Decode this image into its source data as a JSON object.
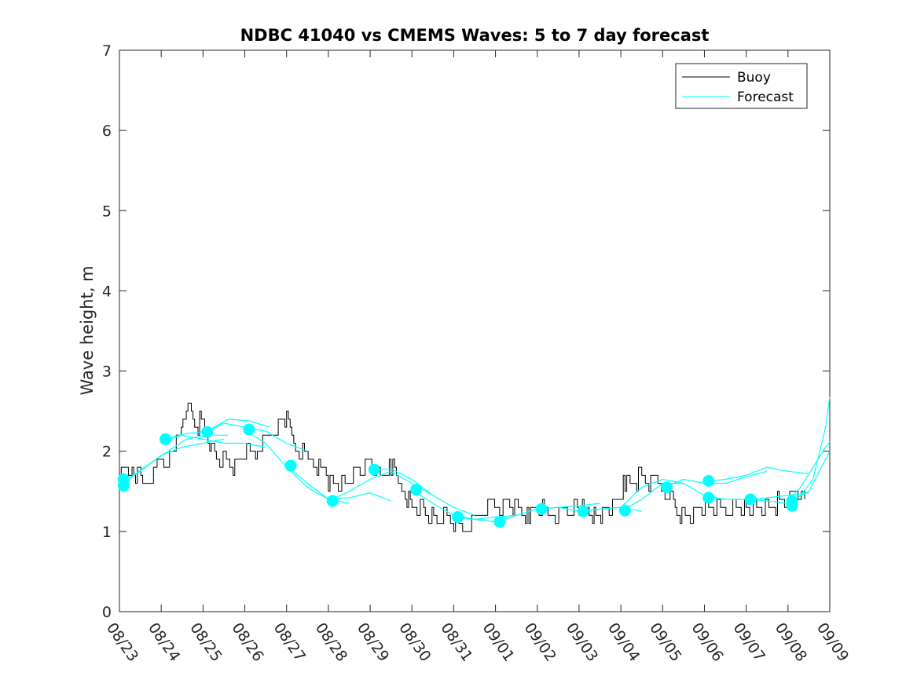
{
  "chart_data": {
    "type": "line",
    "title": "NDBC 41040 vs CMEMS Waves: 5 to 7 day forecast",
    "xlabel": "",
    "ylabel": "Wave height, m",
    "xlim": [
      "08/23",
      "09/09"
    ],
    "ylim": [
      0,
      7
    ],
    "yticks": [
      0,
      1,
      2,
      3,
      4,
      5,
      6,
      7
    ],
    "xtick_labels": [
      "08/23",
      "08/24",
      "08/25",
      "08/26",
      "08/27",
      "08/28",
      "08/29",
      "08/30",
      "08/31",
      "09/01",
      "09/02",
      "09/03",
      "09/04",
      "09/05",
      "09/06",
      "09/07",
      "09/08",
      "09/09"
    ],
    "grid": false,
    "legend": {
      "placement": "top-right",
      "entries": [
        "Buoy",
        "Forecast"
      ]
    },
    "colors": {
      "buoy": "#000000",
      "forecast": "#00FFFF",
      "axis": "#262626"
    },
    "series": [
      {
        "name": "Buoy",
        "x": [
          0.0,
          0.3,
          0.6,
          0.9,
          1.1,
          1.2,
          1.4,
          1.6,
          1.8,
          2.0,
          2.2,
          2.4,
          2.6,
          2.8,
          3.0,
          3.3,
          3.6,
          4.0,
          4.3,
          4.6,
          4.9,
          5.0,
          5.2,
          5.4,
          5.6,
          5.8,
          6.0,
          6.2,
          6.5,
          6.8,
          7.0,
          7.2,
          7.4,
          7.6,
          7.8,
          8.0,
          8.3,
          8.6,
          8.9,
          9.1,
          9.3,
          9.5,
          9.8,
          10.0,
          10.3,
          10.6,
          11.0,
          11.4,
          11.8,
          12.1,
          12.3,
          12.5,
          12.8,
          13.1,
          13.3,
          13.5,
          13.7,
          13.9,
          14.1,
          14.3,
          14.6,
          15.0,
          15.5,
          16.0,
          16.2,
          16.4
        ],
        "values": [
          1.7,
          1.8,
          1.6,
          1.8,
          1.9,
          2.0,
          2.1,
          2.6,
          2.3,
          2.4,
          2.0,
          1.9,
          1.9,
          1.8,
          2.0,
          2.0,
          2.2,
          2.4,
          2.0,
          1.9,
          1.7,
          1.6,
          1.6,
          1.6,
          1.7,
          1.8,
          1.9,
          1.7,
          1.8,
          1.5,
          1.3,
          1.3,
          1.2,
          1.1,
          1.2,
          1.1,
          1.05,
          1.2,
          1.3,
          1.3,
          1.4,
          1.3,
          1.2,
          1.3,
          1.2,
          1.2,
          1.3,
          1.2,
          1.3,
          1.6,
          1.6,
          1.7,
          1.6,
          1.5,
          1.3,
          1.2,
          1.2,
          1.3,
          1.3,
          1.3,
          1.3,
          1.3,
          1.3,
          1.4,
          1.5,
          1.4
        ]
      },
      {
        "name": "Forecast",
        "runs": [
          {
            "x": [
              0.0,
              0.5,
              1.0,
              1.5,
              2.0,
              2.5
            ],
            "values": [
              1.58,
              1.75,
              1.95,
              2.05,
              2.1,
              2.15
            ]
          },
          {
            "x": [
              0.1,
              0.6,
              1.1,
              1.6,
              2.1,
              2.6
            ],
            "values": [
              1.62,
              1.8,
              1.98,
              2.15,
              2.2,
              2.2
            ]
          },
          {
            "x": [
              1.0,
              1.5,
              2.0,
              2.5,
              3.0,
              3.5
            ],
            "values": [
              2.12,
              2.2,
              2.15,
              2.1,
              2.1,
              2.05
            ]
          },
          {
            "x": [
              1.1,
              1.6,
              2.1,
              2.6,
              3.1,
              3.6
            ],
            "values": [
              2.16,
              2.22,
              2.25,
              2.4,
              2.38,
              2.3
            ]
          },
          {
            "x": [
              2.0,
              2.5,
              3.0,
              3.5,
              4.0,
              4.5
            ],
            "values": [
              2.22,
              2.35,
              2.3,
              2.25,
              2.1,
              2.0
            ]
          },
          {
            "x": [
              3.0,
              3.5,
              4.0,
              4.5,
              5.0,
              5.5
            ],
            "values": [
              2.26,
              2.1,
              1.8,
              1.55,
              1.4,
              1.35
            ]
          },
          {
            "x": [
              4.0,
              4.5,
              5.0,
              5.5,
              6.0,
              6.5
            ],
            "values": [
              1.82,
              1.6,
              1.4,
              1.42,
              1.48,
              1.38
            ]
          },
          {
            "x": [
              5.0,
              5.5,
              6.0,
              6.5,
              7.0,
              7.5
            ],
            "values": [
              1.38,
              1.5,
              1.65,
              1.75,
              1.6,
              1.45
            ]
          },
          {
            "x": [
              6.0,
              6.5,
              7.0,
              7.5,
              8.0,
              8.5
            ],
            "values": [
              1.76,
              1.78,
              1.65,
              1.45,
              1.3,
              1.2
            ]
          },
          {
            "x": [
              7.0,
              7.5,
              8.0,
              8.5,
              9.0,
              9.5
            ],
            "values": [
              1.52,
              1.35,
              1.2,
              1.15,
              1.18,
              1.2
            ]
          },
          {
            "x": [
              8.0,
              8.5,
              9.0,
              9.5,
              10.0,
              10.5
            ],
            "values": [
              1.18,
              1.15,
              1.12,
              1.2,
              1.28,
              1.3
            ]
          },
          {
            "x": [
              9.0,
              9.5,
              10.0,
              10.5,
              11.0,
              11.5
            ],
            "values": [
              1.12,
              1.2,
              1.28,
              1.3,
              1.32,
              1.35
            ]
          },
          {
            "x": [
              10.0,
              10.5,
              11.0,
              11.5,
              12.0,
              12.5
            ],
            "values": [
              1.28,
              1.3,
              1.25,
              1.28,
              1.3,
              1.25
            ]
          },
          {
            "x": [
              11.0,
              11.5,
              12.0,
              12.5,
              13.0,
              13.5
            ],
            "values": [
              1.25,
              1.28,
              1.3,
              1.55,
              1.65,
              1.6
            ]
          },
          {
            "x": [
              12.0,
              12.5,
              13.0,
              13.5,
              14.0,
              14.5
            ],
            "values": [
              1.25,
              1.4,
              1.6,
              1.6,
              1.45,
              1.4
            ]
          },
          {
            "x": [
              13.0,
              13.5,
              14.0,
              14.5,
              15.0,
              15.5
            ],
            "values": [
              1.55,
              1.65,
              1.6,
              1.6,
              1.68,
              1.75
            ]
          },
          {
            "x": [
              14.0,
              14.5,
              15.0,
              15.5,
              16.0,
              16.5
            ],
            "values": [
              1.62,
              1.65,
              1.7,
              1.8,
              1.75,
              1.72
            ]
          },
          {
            "x": [
              14.0,
              14.5,
              15.0,
              15.5,
              16.0,
              16.5
            ],
            "values": [
              1.42,
              1.4,
              1.4,
              1.42,
              1.45,
              1.48
            ]
          },
          {
            "x": [
              15.0,
              15.5,
              16.0,
              16.5,
              17.0
            ],
            "values": [
              1.4,
              1.38,
              1.35,
              1.5,
              2.0
            ]
          },
          {
            "x": [
              16.0,
              16.3,
              16.6,
              16.9,
              17.0
            ],
            "values": [
              1.32,
              1.45,
              1.65,
              2.3,
              2.68
            ]
          },
          {
            "x": [
              16.0,
              16.3,
              16.6,
              16.9,
              17.0
            ],
            "values": [
              1.38,
              1.55,
              1.8,
              2.05,
              2.12
            ]
          }
        ],
        "markers": {
          "x": [
            0.1,
            0.1,
            1.1,
            2.1,
            3.1,
            4.1,
            5.1,
            6.1,
            7.1,
            8.1,
            9.1,
            10.1,
            11.1,
            12.1,
            13.1,
            14.1,
            14.1,
            15.1,
            16.1,
            16.1
          ],
          "values": [
            1.65,
            1.57,
            2.15,
            2.24,
            2.27,
            1.82,
            1.38,
            1.77,
            1.52,
            1.18,
            1.12,
            1.28,
            1.25,
            1.26,
            1.55,
            1.63,
            1.42,
            1.4,
            1.32,
            1.38
          ]
        }
      }
    ]
  }
}
